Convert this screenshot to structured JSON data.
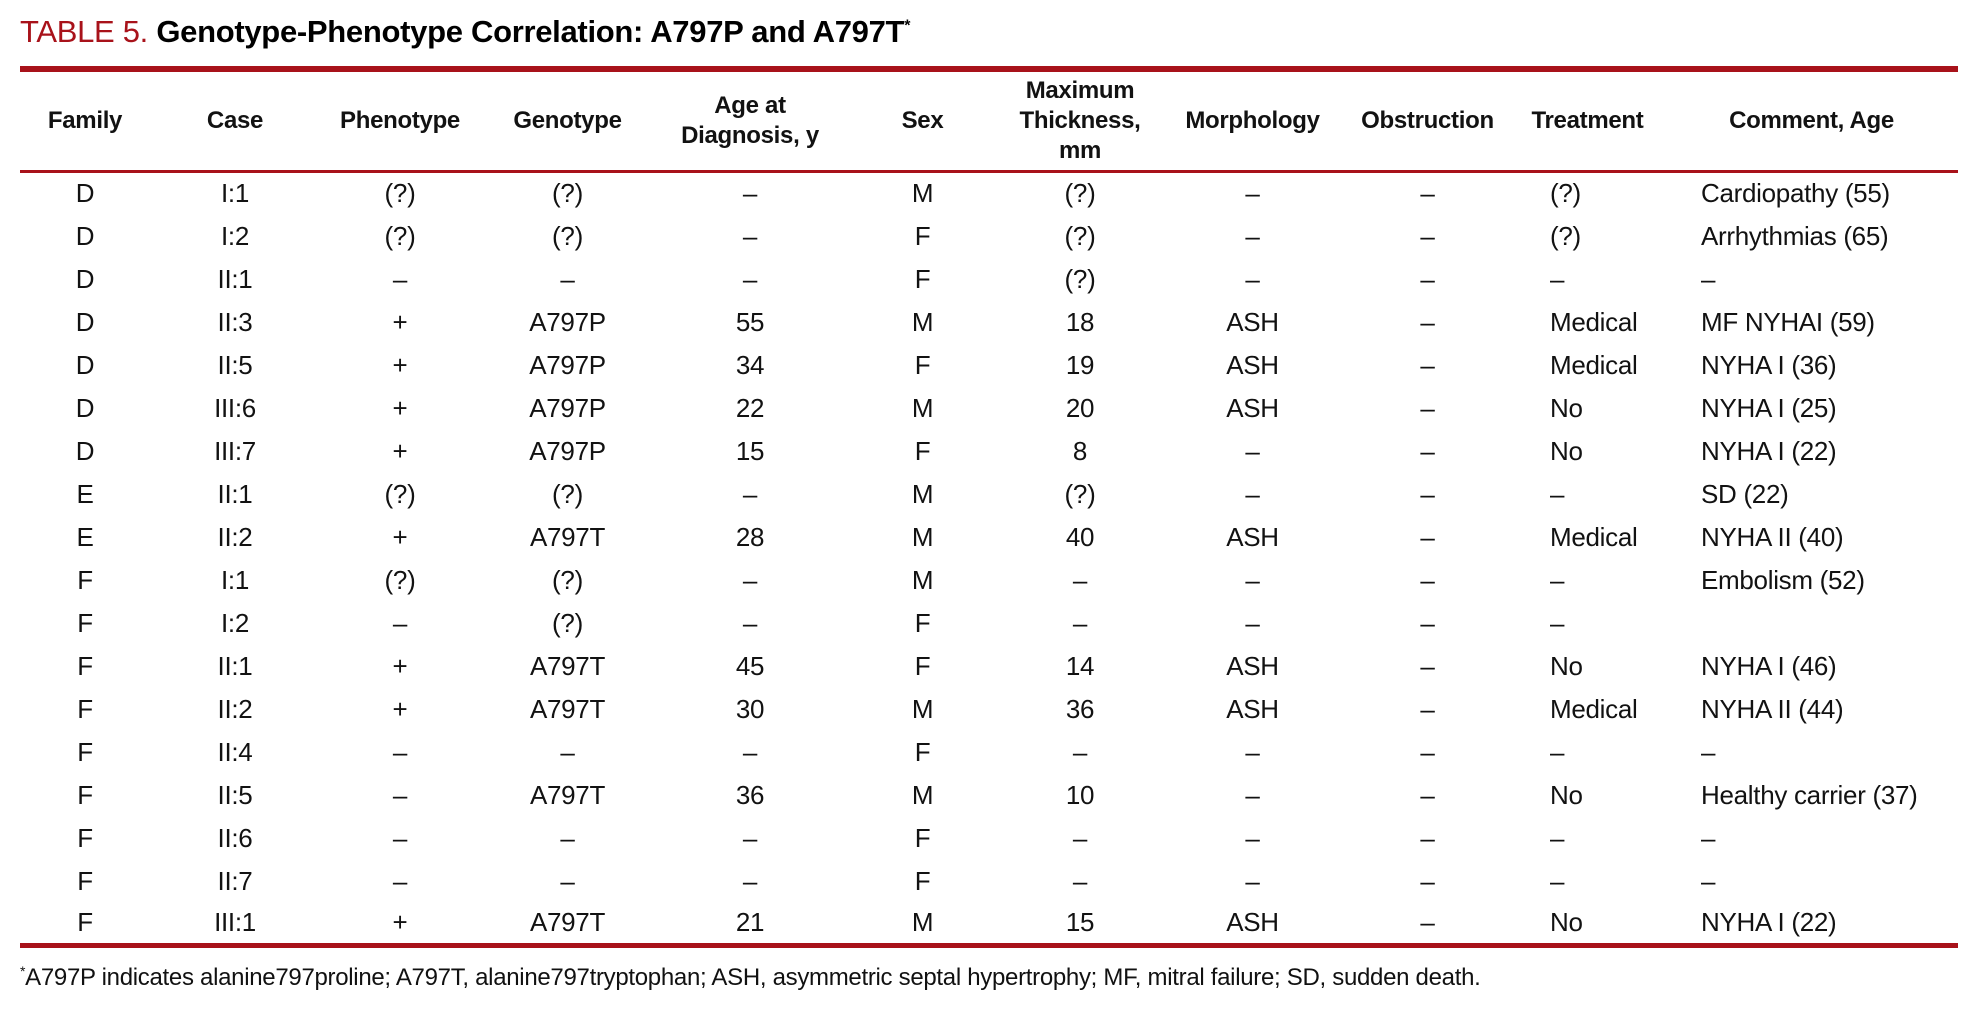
{
  "table": {
    "label": "TABLE 5.",
    "title": "Genotype-Phenotype Correlation: A797P and A797T",
    "title_marker": "*",
    "accent_color": "#a8121a",
    "columns": [
      "Family",
      "Case",
      "Phenotype",
      "Genotype",
      "Age at Diagnosis, y",
      "Sex",
      "Maximum Thickness, mm",
      "Morphology",
      "Obstruction",
      "Treatment",
      "Comment, Age"
    ],
    "rows": [
      [
        "D",
        "I:1",
        "(?)",
        "(?)",
        "–",
        "M",
        "(?)",
        "–",
        "–",
        "(?)",
        "Cardiopathy (55)"
      ],
      [
        "D",
        "I:2",
        "(?)",
        "(?)",
        "–",
        "F",
        "(?)",
        "–",
        "–",
        "(?)",
        "Arrhythmias (65)"
      ],
      [
        "D",
        "II:1",
        "–",
        "–",
        "–",
        "F",
        "(?)",
        "–",
        "–",
        "–",
        "–"
      ],
      [
        "D",
        "II:3",
        "+",
        "A797P",
        "55",
        "M",
        "18",
        "ASH",
        "–",
        "Medical",
        "MF NYHAI (59)"
      ],
      [
        "D",
        "II:5",
        "+",
        "A797P",
        "34",
        "F",
        "19",
        "ASH",
        "–",
        "Medical",
        "NYHA I (36)"
      ],
      [
        "D",
        "III:6",
        "+",
        "A797P",
        "22",
        "M",
        "20",
        "ASH",
        "–",
        "No",
        "NYHA I (25)"
      ],
      [
        "D",
        "III:7",
        "+",
        "A797P",
        "15",
        "F",
        "8",
        "–",
        "–",
        "No",
        "NYHA I (22)"
      ],
      [
        "E",
        "II:1",
        "(?)",
        "(?)",
        "–",
        "M",
        "(?)",
        "–",
        "–",
        "–",
        "SD (22)"
      ],
      [
        "E",
        "II:2",
        "+",
        "A797T",
        "28",
        "M",
        "40",
        "ASH",
        "–",
        "Medical",
        "NYHA II (40)"
      ],
      [
        "F",
        "I:1",
        "(?)",
        "(?)",
        "–",
        "M",
        "–",
        "–",
        "–",
        "–",
        "Embolism (52)"
      ],
      [
        "F",
        "I:2",
        "–",
        "(?)",
        "–",
        "F",
        "–",
        "–",
        "–",
        "–",
        ""
      ],
      [
        "F",
        "II:1",
        "+",
        "A797T",
        "45",
        "F",
        "14",
        "ASH",
        "–",
        "No",
        "NYHA I (46)"
      ],
      [
        "F",
        "II:2",
        "+",
        "A797T",
        "30",
        "M",
        "36",
        "ASH",
        "–",
        "Medical",
        "NYHA II (44)"
      ],
      [
        "F",
        "II:4",
        "–",
        "–",
        "–",
        "F",
        "–",
        "–",
        "–",
        "–",
        "–"
      ],
      [
        "F",
        "II:5",
        "–",
        "A797T",
        "36",
        "M",
        "10",
        "–",
        "–",
        "No",
        "Healthy carrier (37)"
      ],
      [
        "F",
        "II:6",
        "–",
        "–",
        "–",
        "F",
        "–",
        "–",
        "–",
        "–",
        "–"
      ],
      [
        "F",
        "II:7",
        "–",
        "–",
        "–",
        "F",
        "–",
        "–",
        "–",
        "–",
        "–"
      ],
      [
        "F",
        "III:1",
        "+",
        "A797T",
        "21",
        "M",
        "15",
        "ASH",
        "–",
        "No",
        "NYHA I (22)"
      ]
    ],
    "footnote_marker": "*",
    "footnote": "A797P indicates alanine797proline; A797T, alanine797tryptophan; ASH, asymmetric septal hypertrophy; MF, mitral failure; SD, sudden death."
  }
}
